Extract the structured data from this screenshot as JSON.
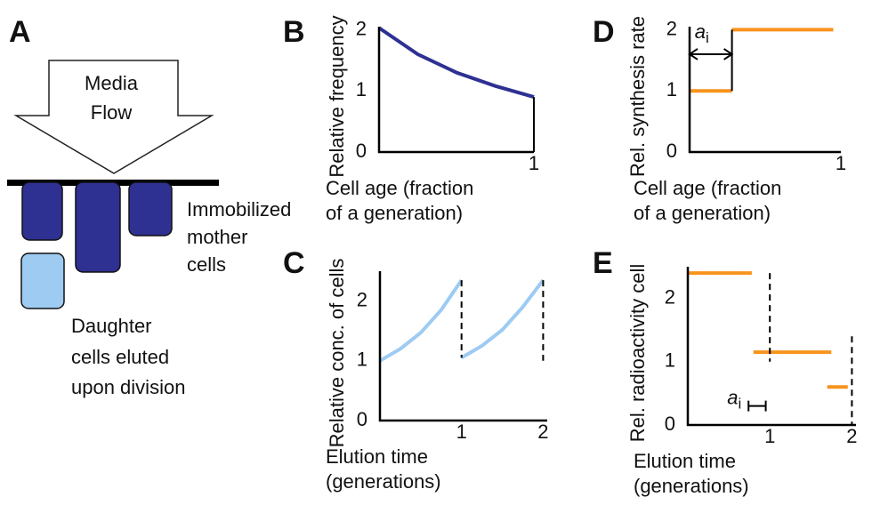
{
  "panel_a": {
    "label": "A",
    "arrow_text": [
      "Media",
      "Flow"
    ],
    "mother_text": [
      "Immobilized",
      "mother",
      "cells"
    ],
    "daughter_text": [
      "Daughter",
      "cells eluted",
      "upon division"
    ]
  },
  "chart_data": [
    {
      "type": "line",
      "panel": "B",
      "ylabel": "Relative frequency",
      "xlabel": [
        "Cell age (fraction",
        "of a generation)"
      ],
      "xlim": [
        0,
        1
      ],
      "ylim": [
        0,
        2.05
      ],
      "xticks": [
        1
      ],
      "yticks": [
        0,
        1,
        2
      ],
      "grid": false,
      "series": [
        {
          "color": "#2e3192",
          "x": [
            0,
            0.25,
            0.5,
            0.75,
            1
          ],
          "values": [
            2.03,
            1.6,
            1.3,
            1.08,
            0.9
          ]
        },
        {
          "color": "#000000",
          "x": [
            1,
            1
          ],
          "values": [
            0.9,
            0
          ]
        }
      ]
    },
    {
      "type": "line",
      "panel": "C",
      "ylabel": "Relative conc. of cells",
      "xlabel": [
        "Elution time",
        "(generations)"
      ],
      "xlim": [
        0,
        2.05
      ],
      "ylim": [
        0,
        2.5
      ],
      "xticks": [
        1,
        2
      ],
      "yticks": [
        0,
        1,
        2
      ],
      "grid": false,
      "series": [
        {
          "color": "#9dcbf2",
          "x": [
            0,
            0.25,
            0.5,
            0.75,
            1,
            1,
            1,
            1.25,
            1.5,
            1.75,
            2
          ],
          "values": [
            1,
            1.2,
            1.47,
            1.85,
            2.35,
            null,
            1.05,
            1.25,
            1.52,
            1.9,
            2.35
          ]
        },
        {
          "color": "#000000",
          "dashed": true,
          "x": [
            1,
            1,
            2,
            2,
            2
          ],
          "values": [
            2.35,
            1.05,
            null,
            2.35,
            1.0
          ]
        }
      ]
    },
    {
      "type": "line",
      "panel": "D",
      "ylabel": "Rel. synthesis rate",
      "xlabel": [
        "Cell age (fraction",
        "of a generation)"
      ],
      "xlim": [
        0,
        1
      ],
      "ylim": [
        0,
        2.05
      ],
      "xticks": [
        1
      ],
      "yticks": [
        0,
        1,
        2
      ],
      "grid": false,
      "annotation": {
        "text": "a",
        "subscript": "i",
        "span": [
          0,
          0.28
        ],
        "y": 1.6,
        "style": "arrow"
      },
      "series": [
        {
          "color": "#f7941d",
          "x": [
            0,
            0.28,
            0.28,
            0.28,
            0.95
          ],
          "values": [
            1,
            1,
            null,
            2,
            2
          ]
        },
        {
          "color": "#000000",
          "x": [
            0.28,
            0.28
          ],
          "values": [
            1,
            2
          ]
        }
      ]
    },
    {
      "type": "line",
      "panel": "E",
      "ylabel": "Rel. radioactivity cell",
      "xlabel": [
        "Elution time",
        "(generations)"
      ],
      "xlim": [
        0,
        2.05
      ],
      "ylim": [
        0,
        2.5
      ],
      "xticks": [
        1,
        2
      ],
      "yticks": [
        0,
        1,
        2
      ],
      "grid": false,
      "annotation": {
        "text": "a",
        "subscript": "i",
        "span": [
          0.74,
          0.95
        ],
        "y": 0.3,
        "style": "bar"
      },
      "series": [
        {
          "color": "#f7941d",
          "x": [
            0,
            0.78,
            0.78,
            0.8,
            1.75,
            1.75,
            1.7,
            1.95
          ],
          "values": [
            2.4,
            2.4,
            null,
            1.15,
            1.15,
            null,
            0.6,
            0.6
          ]
        },
        {
          "color": "#000000",
          "dashed": true,
          "x": [
            1,
            1,
            1,
            2,
            2
          ],
          "values": [
            2.4,
            1.0,
            null,
            1.4,
            0
          ]
        }
      ]
    }
  ]
}
